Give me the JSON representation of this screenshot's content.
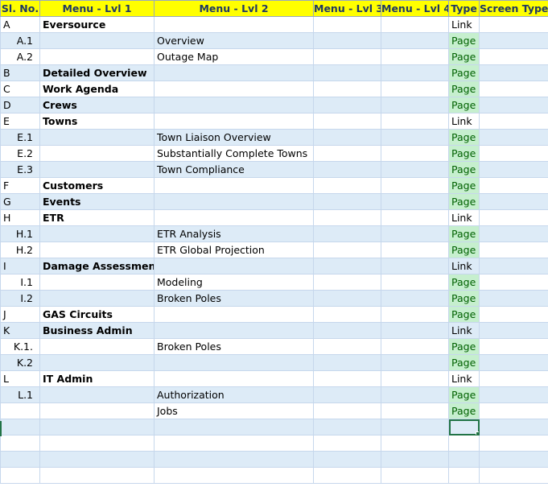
{
  "headers": [
    "Sl. No.",
    "Menu - Lvl 1",
    "Menu - Lvl 2",
    "Menu - Lvl 3",
    "Menu - Lvl 4",
    "Type",
    "Screen Type"
  ],
  "rows": [
    {
      "sl": "A",
      "indent": false,
      "l1": "Eversource",
      "l2": "",
      "type": "Link"
    },
    {
      "sl": "A.1",
      "indent": true,
      "l1": "",
      "l2": "Overview",
      "type": "Page"
    },
    {
      "sl": "A.2",
      "indent": true,
      "l1": "",
      "l2": "Outage Map",
      "type": "Page"
    },
    {
      "sl": "B",
      "indent": false,
      "l1": "Detailed Overview",
      "l2": "",
      "type": "Page"
    },
    {
      "sl": "C",
      "indent": false,
      "l1": "Work Agenda",
      "l2": "",
      "type": "Page"
    },
    {
      "sl": "D",
      "indent": false,
      "l1": "Crews",
      "l2": "",
      "type": "Page"
    },
    {
      "sl": "E",
      "indent": false,
      "l1": "Towns",
      "l2": "",
      "type": "Link"
    },
    {
      "sl": "E.1",
      "indent": true,
      "l1": "",
      "l2": "Town Liaison Overview",
      "type": "Page"
    },
    {
      "sl": "E.2",
      "indent": true,
      "l1": "",
      "l2": "Substantially Complete Towns",
      "type": "Page"
    },
    {
      "sl": "E.3",
      "indent": true,
      "l1": "",
      "l2": "Town Compliance",
      "type": "Page"
    },
    {
      "sl": "F",
      "indent": false,
      "l1": "Customers",
      "l2": "",
      "type": "Page"
    },
    {
      "sl": "G",
      "indent": false,
      "l1": "Events",
      "l2": "",
      "type": "Page"
    },
    {
      "sl": "H",
      "indent": false,
      "l1": "ETR",
      "l2": "",
      "type": "Link"
    },
    {
      "sl": "H.1",
      "indent": true,
      "l1": "",
      "l2": "ETR Analysis",
      "type": "Page"
    },
    {
      "sl": "H.2",
      "indent": true,
      "l1": "",
      "l2": "ETR Global Projection",
      "type": "Page"
    },
    {
      "sl": "I",
      "indent": false,
      "l1": "Damage Assessment",
      "l2": "",
      "type": "Link"
    },
    {
      "sl": "I.1",
      "indent": true,
      "l1": "",
      "l2": "Modeling",
      "type": "Page"
    },
    {
      "sl": "I.2",
      "indent": true,
      "l1": "",
      "l2": "Broken Poles",
      "type": "Page"
    },
    {
      "sl": "J",
      "indent": false,
      "l1": "GAS Circuits",
      "l2": "",
      "type": "Page"
    },
    {
      "sl": "K",
      "indent": false,
      "l1": "Business Admin",
      "l2": "",
      "type": "Link"
    },
    {
      "sl": "K.1.",
      "indent": true,
      "l1": "",
      "l2": "Broken Poles",
      "type": "Page"
    },
    {
      "sl": "K.2",
      "indent": true,
      "l1": "",
      "l2": "",
      "type": "Page"
    },
    {
      "sl": "L",
      "indent": false,
      "l1": "IT Admin",
      "l2": "",
      "type": "Link"
    },
    {
      "sl": "L.1",
      "indent": true,
      "l1": "",
      "l2": "Authorization",
      "type": "Page"
    },
    {
      "sl": "",
      "indent": false,
      "l1": "",
      "l2": "Jobs",
      "type": "Page"
    },
    {
      "sl": "",
      "indent": false,
      "l1": "",
      "l2": "",
      "type": ""
    },
    {
      "sl": "",
      "indent": false,
      "l1": "",
      "l2": "",
      "type": ""
    },
    {
      "sl": "",
      "indent": false,
      "l1": "",
      "l2": "",
      "type": ""
    },
    {
      "sl": "",
      "indent": false,
      "l1": "",
      "l2": "",
      "type": ""
    }
  ],
  "colors": {
    "header_bg": "#ffff00",
    "header_text": "#1f3864",
    "alt_row_bg": "#ddebf7",
    "page_bg": "#c6efce",
    "page_text": "#006100",
    "selection": "#217346"
  }
}
